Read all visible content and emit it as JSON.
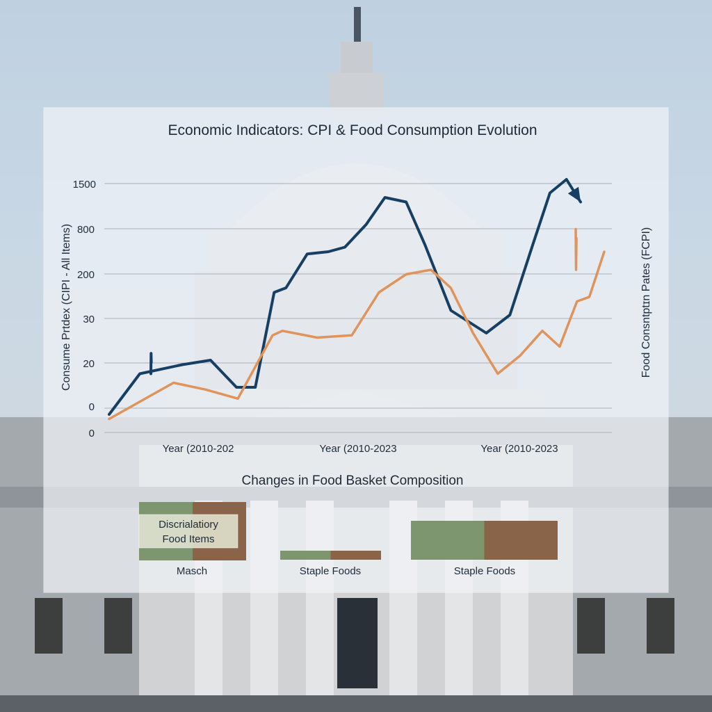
{
  "chart_data": [
    {
      "type": "line",
      "title": "Economic Indicators: CPI & Food Consumption Evolution",
      "ylabel_left": "Consume Prtdex (CIPI - All Items)",
      "ylabel_right": "Food Consntptɪn Pates (FCPI)",
      "y_tick_labels": [
        "1500",
        "800",
        "200",
        "30",
        "20",
        "0",
        "0"
      ],
      "x_tick_labels": [
        "Year (2010-202",
        "Year (2010-2023",
        "Year (2010-2023"
      ],
      "ylim": [
        0,
        6
      ],
      "xlim": [
        0,
        1
      ],
      "grid": true,
      "series": [
        {
          "color": "#173e63",
          "x": [
            0.0,
            0.065,
            0.155,
            0.215,
            0.27,
            0.31,
            0.35,
            0.375,
            0.42,
            0.465,
            0.5,
            0.545,
            0.585,
            0.63,
            0.67,
            0.725,
            0.8,
            0.85,
            0.9,
            0.935,
            0.97,
            1.0
          ],
          "values": [
            0.4,
            1.3,
            1.5,
            1.6,
            1.0,
            1.0,
            3.1,
            3.2,
            3.95,
            4.0,
            4.1,
            4.6,
            5.2,
            5.1,
            4.15,
            2.7,
            2.2,
            2.6,
            4.2,
            5.3,
            5.6,
            5.1
          ]
        },
        {
          "color": "#173e63",
          "x": [
            0.0,
            0.013,
            0.027
          ],
          "values": [
            1.3,
            1.75,
            1.55
          ]
        },
        {
          "color": "#e0935a",
          "x": [
            0.0,
            0.065,
            0.13,
            0.195,
            0.26,
            0.3,
            0.33,
            0.35,
            0.42,
            0.49,
            0.545,
            0.6,
            0.65,
            0.69,
            0.735,
            0.785,
            0.83,
            0.875,
            0.91,
            0.945,
            0.97,
            1.0
          ],
          "values": [
            0.3,
            0.7,
            1.1,
            0.95,
            0.75,
            1.55,
            2.15,
            2.25,
            2.1,
            2.15,
            3.1,
            3.5,
            3.6,
            3.2,
            2.2,
            1.3,
            1.7,
            2.25,
            1.9,
            2.9,
            3.0,
            4.0
          ]
        },
        {
          "color": "#e0935a",
          "x": [
            0.0,
            0.02,
            0.04
          ],
          "values": [
            4.5,
            3.6,
            4.3
          ]
        }
      ]
    },
    {
      "type": "bar",
      "title": "Changes in Food Basket Composition",
      "categories": [
        "Masch",
        "Staple Foods",
        "Staple Foods"
      ],
      "inner_label": "Discrialatiory Food Items",
      "series": [
        {
          "color": "#7e9670",
          "values": [
            0.5,
            0.5,
            0.5
          ]
        },
        {
          "color": "#8a6448",
          "values": [
            0.5,
            0.5,
            0.5
          ]
        }
      ]
    }
  ]
}
